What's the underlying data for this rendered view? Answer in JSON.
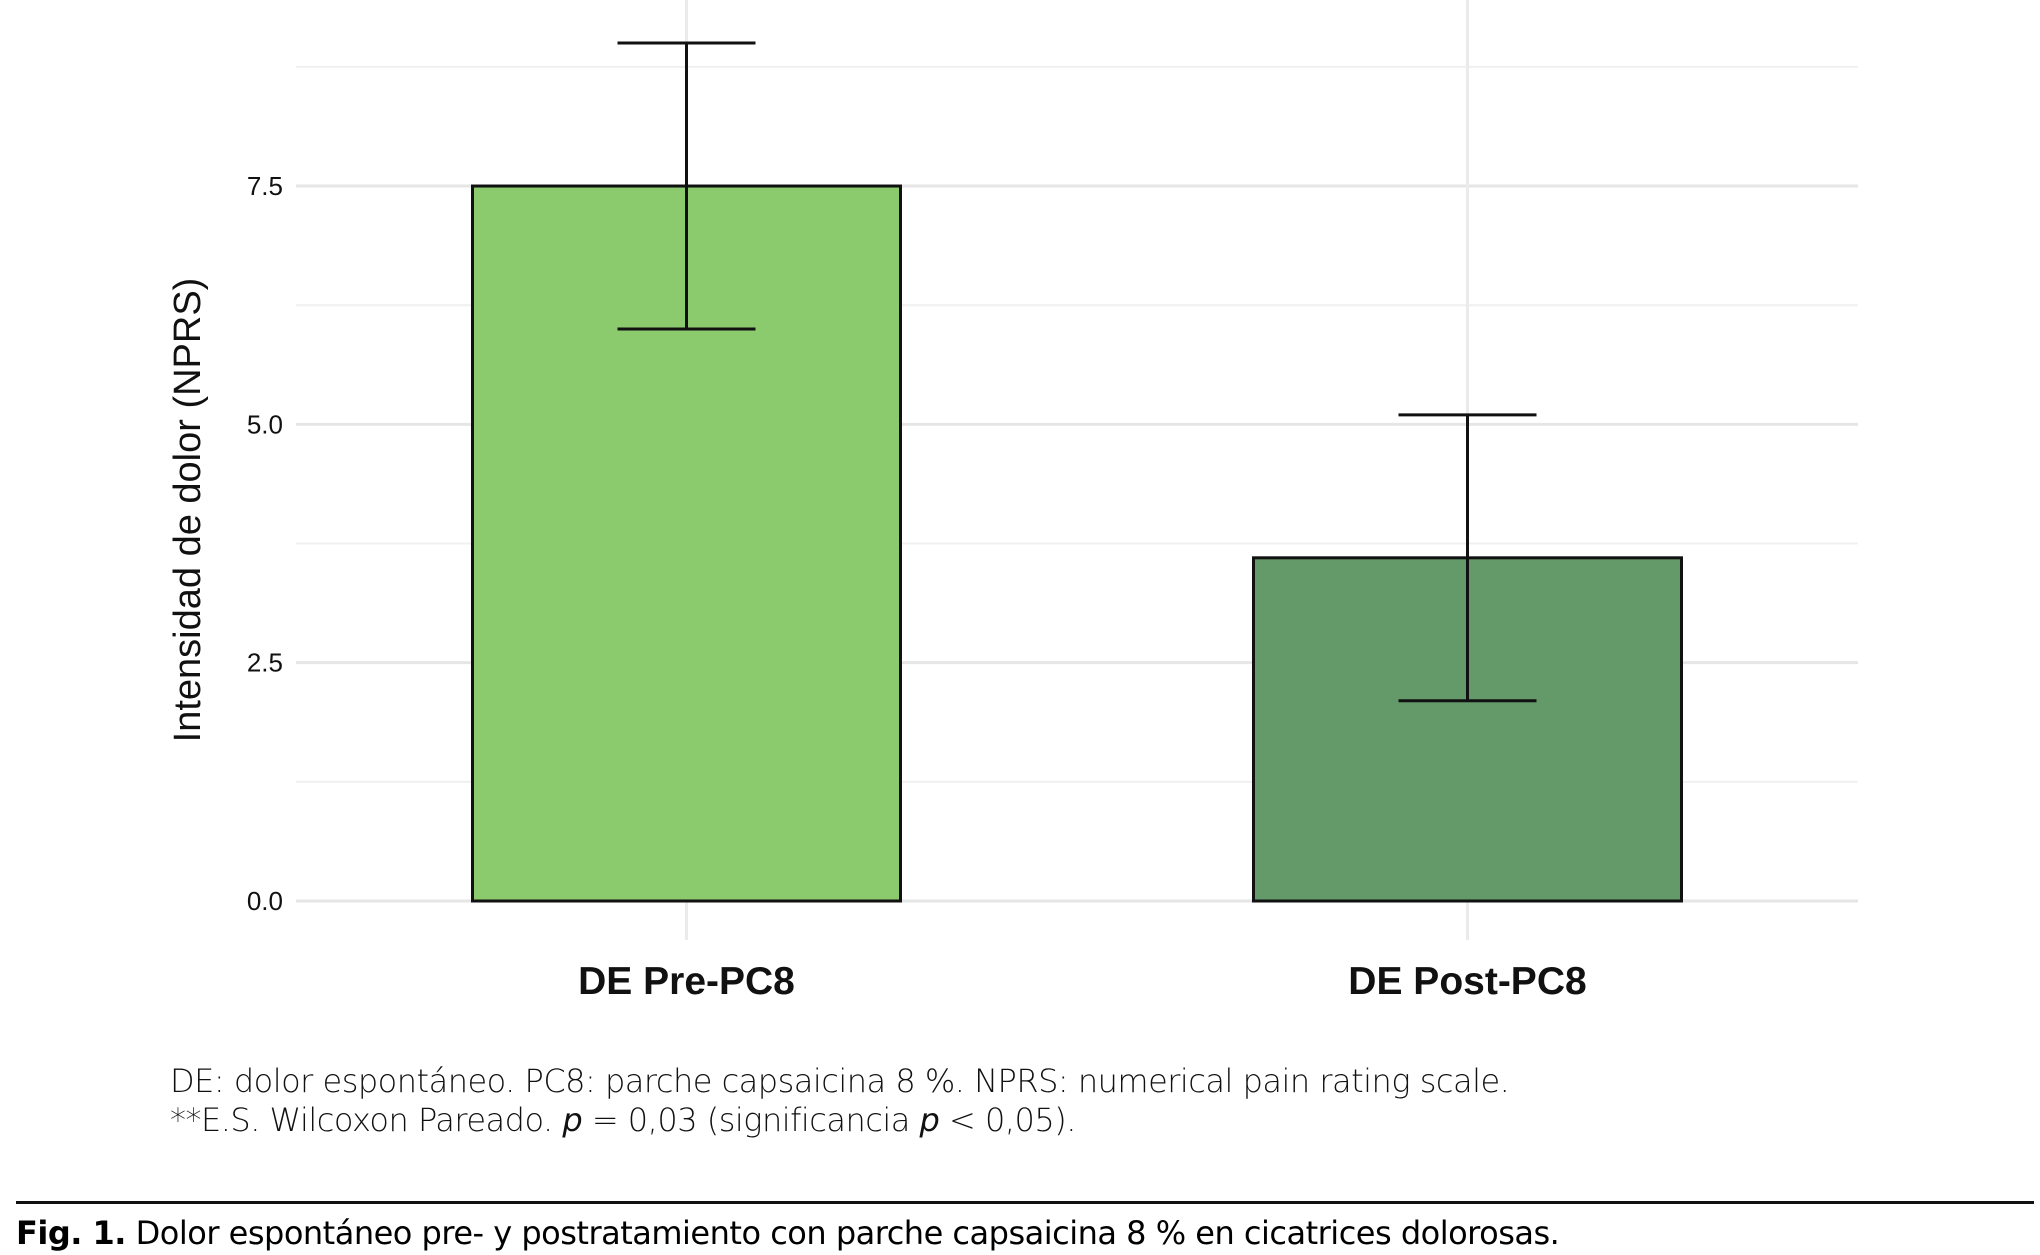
{
  "chart_data": {
    "type": "bar",
    "categories": [
      "DE Pre-PC8",
      "DE Post-PC8"
    ],
    "values": [
      7.5,
      3.6
    ],
    "error_low": [
      6.0,
      2.1
    ],
    "error_high": [
      9.0,
      5.1
    ],
    "colors": [
      "#8cca6e",
      "#64996a"
    ],
    "ylabel": "Intensidad de dolor (NPRS)",
    "xlabel": "",
    "ylim": [
      0,
      9.4
    ],
    "yticks": [
      "0.0",
      "2.5",
      "5.0",
      "7.5"
    ],
    "grid": true
  },
  "notes": {
    "line1": "DE: dolor espontáneo. PC8: parche capsaicina 8 %. NPRS: numerical pain rating scale.",
    "line2_a": "**E.S. Wilcoxon Pareado. ",
    "line2_p1": "p",
    "line2_b": " = 0,03 (significancia ",
    "line2_p2": "p",
    "line2_c": " < 0,05)."
  },
  "caption": {
    "label": "Fig. 1.",
    "text": " Dolor espontáneo pre- y postratamiento con parche capsaicina 8 % en cicatrices dolorosas."
  }
}
